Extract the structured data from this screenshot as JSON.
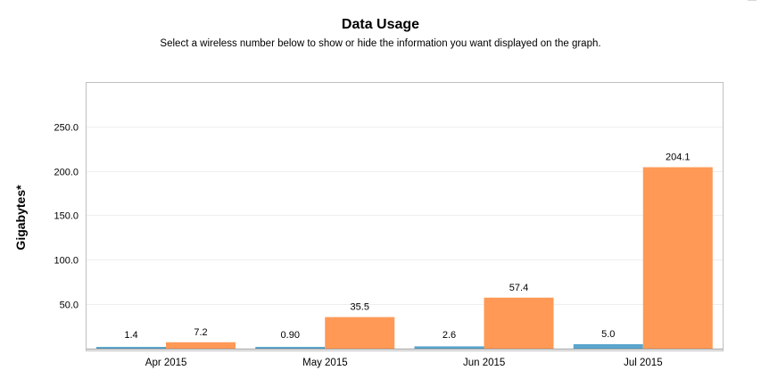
{
  "header": {
    "title": "Data Usage",
    "subtitle": "Select a wireless number below to show or hide the information you want displayed on the graph."
  },
  "chart_data": {
    "type": "bar",
    "title": "Data Usage",
    "subtitle": "Select a wireless number below to show or hide the information you want displayed on the graph.",
    "xlabel": "",
    "ylabel": "Gigabytes*",
    "categories": [
      "Apr 2015",
      "May 2015",
      "Jun 2015",
      "Jul 2015"
    ],
    "series": [
      {
        "values": [
          1.4,
          0.9,
          2.6,
          5.0
        ],
        "labels": [
          "1.4",
          "0.90",
          "2.6",
          "5.0"
        ],
        "color": "#5aa5cc"
      },
      {
        "values": [
          7.2,
          35.5,
          57.4,
          204.1
        ],
        "labels": [
          "7.2",
          "35.5",
          "57.4",
          "204.1"
        ],
        "color": "#ff9955"
      }
    ],
    "yticks": [
      50,
      100,
      150,
      200,
      250
    ],
    "ytick_labels": [
      "50.0",
      "100.0",
      "150.0",
      "200.0",
      "250.0"
    ],
    "ylim": [
      0,
      250
    ],
    "grid": true,
    "legend": "none"
  }
}
